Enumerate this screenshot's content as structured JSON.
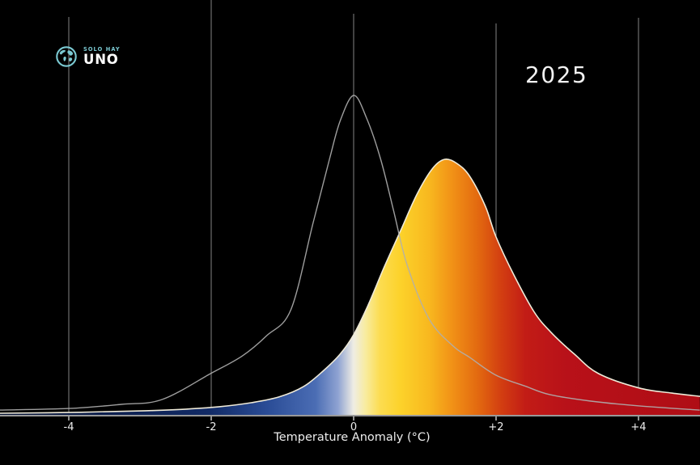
{
  "logo": {
    "top": "SOLO HAY",
    "bottom": "UNO",
    "accent_color": "#7BC9D2"
  },
  "year_label": "2025",
  "chart_data": {
    "type": "area",
    "title": "",
    "xlabel": "Temperature Anomaly (°C)",
    "ylabel": "",
    "background": "#000000",
    "grid": "vertical",
    "legend": "none",
    "xlim": [
      -4.97,
      4.86
    ],
    "x_ticks": [
      {
        "value": -4,
        "label": "-4"
      },
      {
        "value": -2,
        "label": "-2"
      },
      {
        "value": 0,
        "label": "0"
      },
      {
        "value": 2,
        "label": "+2"
      },
      {
        "value": 4,
        "label": "+4"
      }
    ],
    "series": [
      {
        "name": "baseline-distribution",
        "style": "line",
        "color": "rgba(175,175,175,0.9)",
        "points": [
          [
            -4.97,
            0.015
          ],
          [
            -4.0,
            0.02
          ],
          [
            -3.26,
            0.033
          ],
          [
            -2.69,
            0.048
          ],
          [
            -2.01,
            0.129
          ],
          [
            -1.56,
            0.185
          ],
          [
            -1.22,
            0.248
          ],
          [
            -0.88,
            0.33
          ],
          [
            -0.57,
            0.6
          ],
          [
            -0.34,
            0.8
          ],
          [
            -0.19,
            0.92
          ],
          [
            0.0,
            1.0
          ],
          [
            0.18,
            0.93
          ],
          [
            0.38,
            0.8
          ],
          [
            0.56,
            0.64
          ],
          [
            0.75,
            0.47
          ],
          [
            1.06,
            0.3
          ],
          [
            1.4,
            0.215
          ],
          [
            1.63,
            0.18
          ],
          [
            2.0,
            0.124
          ],
          [
            2.42,
            0.089
          ],
          [
            2.76,
            0.063
          ],
          [
            3.33,
            0.043
          ],
          [
            4.01,
            0.028
          ],
          [
            4.86,
            0.015
          ]
        ]
      },
      {
        "name": "distribution-2025",
        "style": "filled",
        "outline_color": "#EFEAD8",
        "gradient": [
          {
            "offset": 0.0,
            "color": "#071335"
          },
          {
            "offset": 0.3,
            "color": "#122B66"
          },
          {
            "offset": 0.381,
            "color": "#2A4C96"
          },
          {
            "offset": 0.451,
            "color": "#4B6DB4"
          },
          {
            "offset": 0.483,
            "color": "#8FA3D2"
          },
          {
            "offset": 0.505,
            "color": "#EFEDE4"
          },
          {
            "offset": 0.522,
            "color": "#F8ECA0"
          },
          {
            "offset": 0.543,
            "color": "#FCDC50"
          },
          {
            "offset": 0.572,
            "color": "#FCD22A"
          },
          {
            "offset": 0.613,
            "color": "#F8B81F"
          },
          {
            "offset": 0.647,
            "color": "#F19016"
          },
          {
            "offset": 0.682,
            "color": "#E36A10"
          },
          {
            "offset": 0.717,
            "color": "#D23D11"
          },
          {
            "offset": 0.751,
            "color": "#C21C16"
          },
          {
            "offset": 0.809,
            "color": "#B81119"
          },
          {
            "offset": 1.0,
            "color": "#AF0D15"
          }
        ],
        "points": [
          [
            -4.97,
            0.005
          ],
          [
            -3.83,
            0.008
          ],
          [
            -2.92,
            0.013
          ],
          [
            -2.35,
            0.018
          ],
          [
            -1.9,
            0.025
          ],
          [
            -1.44,
            0.038
          ],
          [
            -1.05,
            0.056
          ],
          [
            -0.7,
            0.089
          ],
          [
            -0.42,
            0.139
          ],
          [
            -0.19,
            0.19
          ],
          [
            0.0,
            0.251
          ],
          [
            0.2,
            0.342
          ],
          [
            0.43,
            0.463
          ],
          [
            0.66,
            0.577
          ],
          [
            0.89,
            0.691
          ],
          [
            1.11,
            0.772
          ],
          [
            1.28,
            0.8
          ],
          [
            1.45,
            0.787
          ],
          [
            1.63,
            0.747
          ],
          [
            1.85,
            0.653
          ],
          [
            2.0,
            0.557
          ],
          [
            2.25,
            0.438
          ],
          [
            2.53,
            0.324
          ],
          [
            2.76,
            0.261
          ],
          [
            3.1,
            0.19
          ],
          [
            3.44,
            0.129
          ],
          [
            4.01,
            0.084
          ],
          [
            4.47,
            0.068
          ],
          [
            4.86,
            0.058
          ]
        ]
      }
    ]
  }
}
